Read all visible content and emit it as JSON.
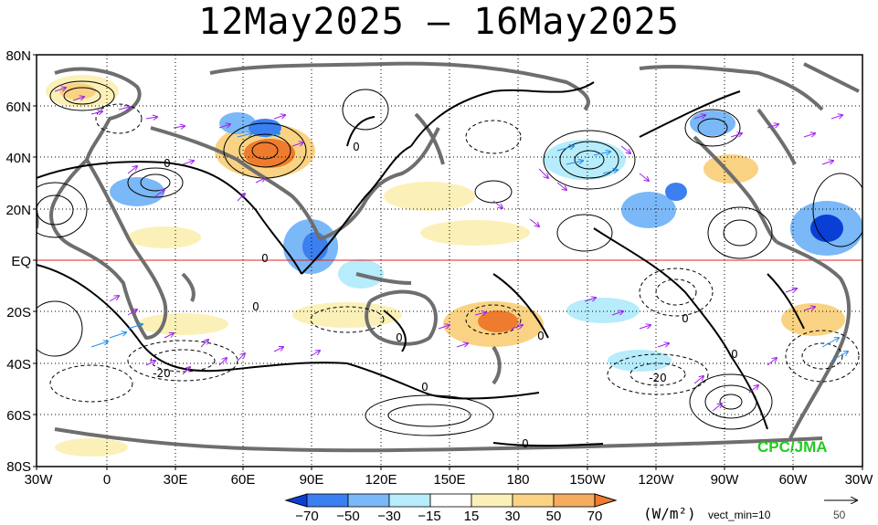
{
  "title": "12May2025 – 16May2025",
  "map": {
    "lat_ticks": [
      "80N",
      "60N",
      "40N",
      "20N",
      "EQ",
      "20S",
      "40S",
      "60S",
      "80S"
    ],
    "lon_ticks": [
      "30W",
      "0",
      "30E",
      "60E",
      "90E",
      "120E",
      "150E",
      "180",
      "150W",
      "120W",
      "90W",
      "60W",
      "30W"
    ],
    "credit": "CPC/JMA",
    "contour_labels": [
      {
        "text": "0"
      },
      {
        "text": "0"
      },
      {
        "text": "0"
      },
      {
        "text": "0"
      },
      {
        "text": "0"
      },
      {
        "text": "0"
      },
      {
        "text": "0"
      },
      {
        "text": "0"
      },
      {
        "text": "0"
      },
      {
        "text": "0"
      },
      {
        "text": "-20"
      },
      {
        "text": "-20"
      }
    ]
  },
  "colorbar": {
    "labels": [
      "−70",
      "−50",
      "−30",
      "−15",
      "15",
      "30",
      "50",
      "70"
    ],
    "colors": [
      "#0a3fd6",
      "#3b7ff0",
      "#7ab8f7",
      "#b6ecfb",
      "#ffffff",
      "#fbf1b8",
      "#f9d383",
      "#f5ac5f",
      "#ee7b2e"
    ],
    "units": "(W/m²)",
    "vect_note": "vect_min=10",
    "ref_vector_value": "50"
  }
}
